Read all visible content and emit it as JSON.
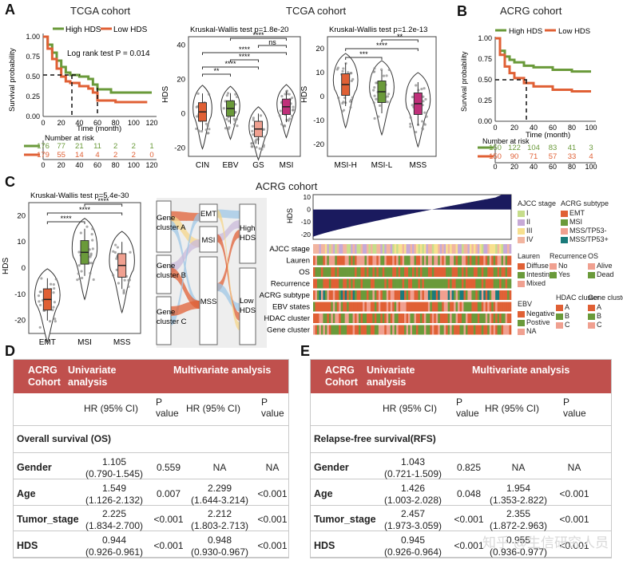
{
  "panel_labels": {
    "a": "A",
    "b": "B",
    "c": "C",
    "d": "D",
    "e": "E"
  },
  "colors": {
    "high": "#6a9a3a",
    "low": "#e06035",
    "header": "#c0504d",
    "navy": "#1a1a5e"
  },
  "km_tcga": {
    "title": "TCGA cohort",
    "legend_high": "High HDS",
    "legend_low": "Low HDS",
    "ylabel": "Survival probability",
    "xlabel": "Time (month)",
    "logrank": "Log rank test P = 0.014",
    "risk_title": "Number at risk",
    "yticks": [
      "1.00",
      "0.75",
      "0.50",
      "0.25",
      "0.00"
    ],
    "xticks": [
      "0",
      "20",
      "40",
      "60",
      "80",
      "100",
      "120"
    ],
    "risk_high": [
      "176",
      "77",
      "21",
      "11",
      "2",
      "2",
      "1"
    ],
    "risk_low": [
      "179",
      "55",
      "14",
      "4",
      "2",
      "2",
      "0"
    ]
  },
  "chart_data": [
    {
      "type": "line",
      "title": "TCGA cohort",
      "xlabel": "Time (month)",
      "ylabel": "Survival probability",
      "xlim": [
        0,
        120
      ],
      "ylim": [
        0,
        1
      ],
      "series": [
        {
          "name": "High HDS",
          "x": [
            0,
            5,
            10,
            15,
            20,
            25,
            30,
            40,
            50,
            55,
            60,
            75,
            120
          ],
          "y": [
            1.0,
            0.9,
            0.8,
            0.7,
            0.62,
            0.55,
            0.52,
            0.5,
            0.47,
            0.4,
            0.34,
            0.3,
            0.3
          ]
        },
        {
          "name": "Low HDS",
          "x": [
            0,
            5,
            10,
            15,
            20,
            25,
            30,
            40,
            50,
            55,
            60,
            80,
            115
          ],
          "y": [
            1.0,
            0.85,
            0.72,
            0.6,
            0.5,
            0.44,
            0.42,
            0.38,
            0.35,
            0.3,
            0.2,
            0.18,
            0.18
          ]
        }
      ]
    },
    {
      "type": "scatter",
      "title": "Kruskal-Wallis test p=1.8e-20",
      "ylabel": "HDS",
      "categories": [
        "CIN",
        "EBV",
        "GS",
        "MSI"
      ],
      "medians": [
        1,
        3,
        -9,
        4
      ],
      "ylim": [
        -25,
        45
      ],
      "comparisons": [
        "**",
        "****",
        "****",
        "****",
        "ns",
        "****"
      ]
    },
    {
      "type": "scatter",
      "title": "Kruskal-Wallis test p=1.2e-13",
      "ylabel": "HDS",
      "categories": [
        "MSI-H",
        "MSI-L",
        "MSS"
      ],
      "medians": [
        5,
        2,
        -3
      ],
      "ylim": [
        -25,
        25
      ],
      "comparisons": [
        "***",
        "****",
        "**"
      ]
    },
    {
      "type": "line",
      "title": "ACRG cohort",
      "xlabel": "Time (month)",
      "ylabel": "Survival probability",
      "xlim": [
        0,
        100
      ],
      "ylim": [
        0,
        1
      ],
      "series": [
        {
          "name": "High HDS",
          "x": [
            0,
            5,
            10,
            15,
            20,
            30,
            40,
            60,
            80,
            100
          ],
          "y": [
            1.0,
            0.85,
            0.78,
            0.74,
            0.71,
            0.67,
            0.65,
            0.62,
            0.6,
            0.6
          ]
        },
        {
          "name": "Low HDS",
          "x": [
            0,
            5,
            10,
            15,
            20,
            30,
            40,
            60,
            80,
            100
          ],
          "y": [
            1.0,
            0.8,
            0.66,
            0.58,
            0.52,
            0.46,
            0.42,
            0.38,
            0.36,
            0.36
          ]
        }
      ]
    },
    {
      "type": "scatter",
      "title": "Kruskal-Wallis test p=5.4e-30",
      "ylabel": "HDS",
      "categories": [
        "EMT",
        "MSI",
        "MSS"
      ],
      "medians": [
        -12,
        6,
        1
      ],
      "ylim": [
        -25,
        25
      ],
      "comparisons": [
        "****",
        "****",
        "****"
      ]
    }
  ],
  "violin_subtypes": {
    "title": "TCGA cohort",
    "test": "Kruskal-Wallis test p=1.8e-20",
    "ylabel": "HDS",
    "yticks": [
      "40",
      "20",
      "0",
      "-20"
    ],
    "xticks": [
      "CIN",
      "EBV",
      "GS",
      "MSI"
    ],
    "sig": [
      "**",
      "****",
      "****",
      "****",
      "ns",
      "****"
    ]
  },
  "violin_msi": {
    "test": "Kruskal-Wallis test p=1.2e-13",
    "ylabel": "HDS",
    "yticks": [
      "20",
      "10",
      "0",
      "-10",
      "-20"
    ],
    "xticks": [
      "MSI-H",
      "MSI-L",
      "MSS"
    ],
    "sig": [
      "***",
      "****",
      "**"
    ]
  },
  "km_acrg": {
    "title": "ACRG cohort",
    "legend_high": "High HDS",
    "legend_low": "Low HDS",
    "ylabel": "Survival probability",
    "xlabel": "Time (month)",
    "yticks": [
      "1.00",
      "0.75",
      "0.50",
      "0.25",
      "0.00"
    ],
    "xticks": [
      "0",
      "20",
      "40",
      "60",
      "80",
      "100"
    ],
    "risk_title": "Number at risk",
    "risk_high": [
      "150",
      "122",
      "104",
      "83",
      "41",
      "3"
    ],
    "risk_low": [
      "150",
      "90",
      "71",
      "57",
      "33",
      "4"
    ]
  },
  "violin_acrg": {
    "test": "Kruskal-Wallis test p=5.4e-30",
    "ylabel": "HDS",
    "yticks": [
      "20",
      "10",
      "0",
      "-10",
      "-20"
    ],
    "xticks": [
      "EMT",
      "MSI",
      "MSS"
    ],
    "sig": [
      "****",
      "****",
      "****"
    ]
  },
  "sankey": {
    "left": [
      "Gene cluster A",
      "Gene cluster B",
      "Gene cluster C"
    ],
    "middle": [
      "EMT",
      "MSI",
      "MSS"
    ],
    "right": [
      "High HDS",
      "Low HDS"
    ]
  },
  "heatmap": {
    "title": "ACRG cohort",
    "ylabel": "HDS",
    "yticks": [
      "10",
      "0",
      "-10",
      "-20"
    ],
    "rows": [
      "AJCC stage",
      "Lauren",
      "OS",
      "Recurrence",
      "ACRG subtype",
      "EBV states",
      "HDAC cluster",
      "Gene cluster"
    ],
    "legend": {
      "ajcc_title": "AJCC stage",
      "ajcc": [
        "I",
        "II",
        "III",
        "IV"
      ],
      "subtype_title": "ACRG subtype",
      "subtype": [
        "EMT",
        "MSI",
        "MSS/TP53-",
        "MSS/TP53+"
      ],
      "lauren_title": "Lauren",
      "lauren": [
        "Diffuse",
        "Intestinal",
        "Mixed"
      ],
      "recurrence_title": "Recurrence",
      "recurrence": [
        "No",
        "Yes"
      ],
      "os_title": "OS",
      "os": [
        "Alive",
        "Dead"
      ],
      "ebv_title": "EBV",
      "ebv": [
        "Negative",
        "Postive",
        "NA"
      ],
      "hdac_title": "HDAC cluster",
      "hdac": [
        "A",
        "B",
        "C"
      ],
      "gene_title": "Gene cluster",
      "gene": [
        "A",
        "B",
        "C"
      ]
    }
  },
  "table_d": {
    "header_cohort": "ACRG Cohort",
    "header_uni": "Univariate analysis",
    "header_multi": "Multivariate analysis",
    "sub_hr": "HR (95% CI)",
    "sub_p": "P value",
    "section": "Overall survival (OS)",
    "rows": [
      {
        "label": "Gender",
        "uni_hr": "1.105",
        "uni_ci": "(0.790-1.545)",
        "uni_p": "0.559",
        "multi_hr": "NA",
        "multi_ci": "",
        "multi_p": "NA"
      },
      {
        "label": "Age",
        "uni_hr": "1.549",
        "uni_ci": "(1.126-2.132)",
        "uni_p": "0.007",
        "multi_hr": "2.299",
        "multi_ci": "(1.644-3.214)",
        "multi_p": "<0.001"
      },
      {
        "label": "Tumor_stage",
        "uni_hr": "2.225",
        "uni_ci": "(1.834-2.700)",
        "uni_p": "<0.001",
        "multi_hr": "2.212",
        "multi_ci": "(1.803-2.713)",
        "multi_p": "<0.001"
      },
      {
        "label": "HDS",
        "uni_hr": "0.944",
        "uni_ci": "(0.926-0.961)",
        "uni_p": "<0.001",
        "multi_hr": "0.948",
        "multi_ci": "(0.930-0.967)",
        "multi_p": "<0.001"
      }
    ]
  },
  "table_e": {
    "header_cohort": "ACRG Cohort",
    "header_uni": "Univariate analysis",
    "header_multi": "Multivariate analysis",
    "sub_hr": "HR (95% CI)",
    "sub_p": "P value",
    "section": "Relapse-free survival(RFS)",
    "rows": [
      {
        "label": "Gender",
        "uni_hr": "1.043",
        "uni_ci": "(0.721-1.509)",
        "uni_p": "0.825",
        "multi_hr": "NA",
        "multi_ci": "",
        "multi_p": "NA"
      },
      {
        "label": "Age",
        "uni_hr": "1.426",
        "uni_ci": "(1.003-2.028)",
        "uni_p": "0.048",
        "multi_hr": "1.954",
        "multi_ci": "(1.353-2.822)",
        "multi_p": "<0.001"
      },
      {
        "label": "Tumor_stage",
        "uni_hr": "2.457",
        "uni_ci": "(1.973-3.059)",
        "uni_p": "<0.001",
        "multi_hr": "2.355",
        "multi_ci": "(1.872-2.963)",
        "multi_p": "<0.001"
      },
      {
        "label": "HDS",
        "uni_hr": "0.945",
        "uni_ci": "(0.926-0.964)",
        "uni_p": "<0.001",
        "multi_hr": "0.955",
        "multi_ci": "(0.936-0.977)",
        "multi_p": "<0.001"
      }
    ]
  },
  "watermark": "知乎 @生信研究人员"
}
